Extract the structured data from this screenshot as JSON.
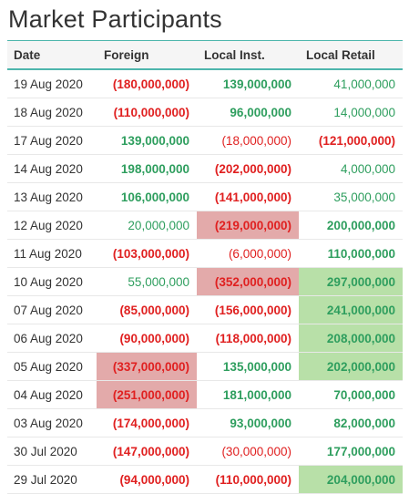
{
  "title": "Market Participants",
  "headers": {
    "date": "Date",
    "foreign": "Foreign",
    "local_inst": "Local Inst.",
    "local_retail": "Local Retail"
  },
  "colors": {
    "positive": "#2e9e5e",
    "negative": "#e02020",
    "highlight_negative": "#e3aaaa",
    "highlight_positive": "#b8e0a8",
    "header_border": "#4db6ac"
  },
  "rows": [
    {
      "date": "19 Aug 2020",
      "foreign": {
        "text": "(180,000,000)",
        "sign": "neg",
        "bold": true,
        "hl": ""
      },
      "local_inst": {
        "text": "139,000,000",
        "sign": "pos",
        "bold": true,
        "hl": ""
      },
      "local_retail": {
        "text": "41,000,000",
        "sign": "pos",
        "bold": false,
        "hl": ""
      }
    },
    {
      "date": "18 Aug 2020",
      "foreign": {
        "text": "(110,000,000)",
        "sign": "neg",
        "bold": true,
        "hl": ""
      },
      "local_inst": {
        "text": "96,000,000",
        "sign": "pos",
        "bold": true,
        "hl": ""
      },
      "local_retail": {
        "text": "14,000,000",
        "sign": "pos",
        "bold": false,
        "hl": ""
      }
    },
    {
      "date": "17 Aug 2020",
      "foreign": {
        "text": "139,000,000",
        "sign": "pos",
        "bold": true,
        "hl": ""
      },
      "local_inst": {
        "text": "(18,000,000)",
        "sign": "neg",
        "bold": false,
        "hl": ""
      },
      "local_retail": {
        "text": "(121,000,000)",
        "sign": "neg",
        "bold": true,
        "hl": ""
      }
    },
    {
      "date": "14 Aug 2020",
      "foreign": {
        "text": "198,000,000",
        "sign": "pos",
        "bold": true,
        "hl": ""
      },
      "local_inst": {
        "text": "(202,000,000)",
        "sign": "neg",
        "bold": true,
        "hl": ""
      },
      "local_retail": {
        "text": "4,000,000",
        "sign": "pos",
        "bold": false,
        "hl": ""
      }
    },
    {
      "date": "13 Aug 2020",
      "foreign": {
        "text": "106,000,000",
        "sign": "pos",
        "bold": true,
        "hl": ""
      },
      "local_inst": {
        "text": "(141,000,000)",
        "sign": "neg",
        "bold": true,
        "hl": ""
      },
      "local_retail": {
        "text": "35,000,000",
        "sign": "pos",
        "bold": false,
        "hl": ""
      }
    },
    {
      "date": "12 Aug 2020",
      "foreign": {
        "text": "20,000,000",
        "sign": "pos",
        "bold": false,
        "hl": ""
      },
      "local_inst": {
        "text": "(219,000,000)",
        "sign": "neg",
        "bold": true,
        "hl": "neg"
      },
      "local_retail": {
        "text": "200,000,000",
        "sign": "pos",
        "bold": true,
        "hl": ""
      }
    },
    {
      "date": "11 Aug 2020",
      "foreign": {
        "text": "(103,000,000)",
        "sign": "neg",
        "bold": true,
        "hl": ""
      },
      "local_inst": {
        "text": "(6,000,000)",
        "sign": "neg",
        "bold": false,
        "hl": ""
      },
      "local_retail": {
        "text": "110,000,000",
        "sign": "pos",
        "bold": true,
        "hl": ""
      }
    },
    {
      "date": "10 Aug 2020",
      "foreign": {
        "text": "55,000,000",
        "sign": "pos",
        "bold": false,
        "hl": ""
      },
      "local_inst": {
        "text": "(352,000,000)",
        "sign": "neg",
        "bold": true,
        "hl": "neg"
      },
      "local_retail": {
        "text": "297,000,000",
        "sign": "pos",
        "bold": true,
        "hl": "pos"
      }
    },
    {
      "date": "07 Aug 2020",
      "foreign": {
        "text": "(85,000,000)",
        "sign": "neg",
        "bold": true,
        "hl": ""
      },
      "local_inst": {
        "text": "(156,000,000)",
        "sign": "neg",
        "bold": true,
        "hl": ""
      },
      "local_retail": {
        "text": "241,000,000",
        "sign": "pos",
        "bold": true,
        "hl": "pos"
      }
    },
    {
      "date": "06 Aug 2020",
      "foreign": {
        "text": "(90,000,000)",
        "sign": "neg",
        "bold": true,
        "hl": ""
      },
      "local_inst": {
        "text": "(118,000,000)",
        "sign": "neg",
        "bold": true,
        "hl": ""
      },
      "local_retail": {
        "text": "208,000,000",
        "sign": "pos",
        "bold": true,
        "hl": "pos"
      }
    },
    {
      "date": "05 Aug 2020",
      "foreign": {
        "text": "(337,000,000)",
        "sign": "neg",
        "bold": true,
        "hl": "neg"
      },
      "local_inst": {
        "text": "135,000,000",
        "sign": "pos",
        "bold": true,
        "hl": ""
      },
      "local_retail": {
        "text": "202,000,000",
        "sign": "pos",
        "bold": true,
        "hl": "pos"
      }
    },
    {
      "date": "04 Aug 2020",
      "foreign": {
        "text": "(251,000,000)",
        "sign": "neg",
        "bold": true,
        "hl": "neg"
      },
      "local_inst": {
        "text": "181,000,000",
        "sign": "pos",
        "bold": true,
        "hl": ""
      },
      "local_retail": {
        "text": "70,000,000",
        "sign": "pos",
        "bold": true,
        "hl": ""
      }
    },
    {
      "date": "03 Aug 2020",
      "foreign": {
        "text": "(174,000,000)",
        "sign": "neg",
        "bold": true,
        "hl": ""
      },
      "local_inst": {
        "text": "93,000,000",
        "sign": "pos",
        "bold": true,
        "hl": ""
      },
      "local_retail": {
        "text": "82,000,000",
        "sign": "pos",
        "bold": true,
        "hl": ""
      }
    },
    {
      "date": "30 Jul 2020",
      "foreign": {
        "text": "(147,000,000)",
        "sign": "neg",
        "bold": true,
        "hl": ""
      },
      "local_inst": {
        "text": "(30,000,000)",
        "sign": "neg",
        "bold": false,
        "hl": ""
      },
      "local_retail": {
        "text": "177,000,000",
        "sign": "pos",
        "bold": true,
        "hl": ""
      }
    },
    {
      "date": "29 Jul 2020",
      "foreign": {
        "text": "(94,000,000)",
        "sign": "neg",
        "bold": true,
        "hl": ""
      },
      "local_inst": {
        "text": "(110,000,000)",
        "sign": "neg",
        "bold": true,
        "hl": ""
      },
      "local_retail": {
        "text": "204,000,000",
        "sign": "pos",
        "bold": true,
        "hl": "pos"
      }
    }
  ]
}
